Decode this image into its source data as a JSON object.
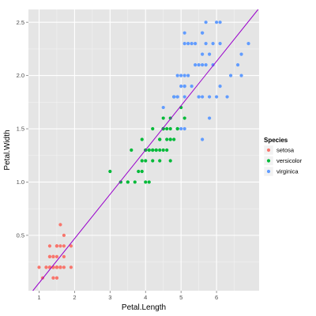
{
  "chart_data": {
    "type": "scatter",
    "title": "",
    "xlabel": "Petal.Length",
    "ylabel": "Petal.Width",
    "xlim": [
      0.7,
      7.2
    ],
    "ylim": [
      -0.02,
      2.62
    ],
    "x_ticks": [
      1,
      2,
      3,
      4,
      5,
      6
    ],
    "y_ticks": [
      0.5,
      1.0,
      1.5,
      2.0,
      2.5
    ],
    "y_tick_labels": [
      "0.5",
      "1.0",
      "1.5",
      "2.0",
      "2.5"
    ],
    "grid": true,
    "legend": {
      "title": "Species",
      "position": "right"
    },
    "series": [
      {
        "name": "setosa",
        "color": "#F8766D",
        "points": [
          [
            1.4,
            0.2
          ],
          [
            1.4,
            0.2
          ],
          [
            1.3,
            0.2
          ],
          [
            1.5,
            0.2
          ],
          [
            1.4,
            0.2
          ],
          [
            1.7,
            0.4
          ],
          [
            1.4,
            0.3
          ],
          [
            1.5,
            0.2
          ],
          [
            1.4,
            0.2
          ],
          [
            1.5,
            0.1
          ],
          [
            1.5,
            0.2
          ],
          [
            1.6,
            0.2
          ],
          [
            1.4,
            0.1
          ],
          [
            1.1,
            0.1
          ],
          [
            1.2,
            0.2
          ],
          [
            1.5,
            0.4
          ],
          [
            1.3,
            0.4
          ],
          [
            1.4,
            0.3
          ],
          [
            1.7,
            0.3
          ],
          [
            1.5,
            0.3
          ],
          [
            1.7,
            0.2
          ],
          [
            1.5,
            0.4
          ],
          [
            1.0,
            0.2
          ],
          [
            1.7,
            0.5
          ],
          [
            1.9,
            0.2
          ],
          [
            1.6,
            0.2
          ],
          [
            1.6,
            0.4
          ],
          [
            1.5,
            0.2
          ],
          [
            1.4,
            0.2
          ],
          [
            1.6,
            0.2
          ],
          [
            1.6,
            0.2
          ],
          [
            1.5,
            0.4
          ],
          [
            1.5,
            0.1
          ],
          [
            1.4,
            0.2
          ],
          [
            1.5,
            0.2
          ],
          [
            1.2,
            0.2
          ],
          [
            1.3,
            0.2
          ],
          [
            1.4,
            0.1
          ],
          [
            1.3,
            0.2
          ],
          [
            1.5,
            0.2
          ],
          [
            1.3,
            0.3
          ],
          [
            1.3,
            0.3
          ],
          [
            1.3,
            0.2
          ],
          [
            1.6,
            0.6
          ],
          [
            1.9,
            0.4
          ],
          [
            1.4,
            0.3
          ],
          [
            1.6,
            0.2
          ],
          [
            1.4,
            0.2
          ],
          [
            1.5,
            0.2
          ],
          [
            1.4,
            0.2
          ]
        ]
      },
      {
        "name": "versicolor",
        "color": "#00BA38",
        "points": [
          [
            4.7,
            1.4
          ],
          [
            4.5,
            1.5
          ],
          [
            4.9,
            1.5
          ],
          [
            4.0,
            1.3
          ],
          [
            4.6,
            1.5
          ],
          [
            4.5,
            1.3
          ],
          [
            4.7,
            1.6
          ],
          [
            3.3,
            1.0
          ],
          [
            4.6,
            1.3
          ],
          [
            3.9,
            1.4
          ],
          [
            3.5,
            1.0
          ],
          [
            4.2,
            1.5
          ],
          [
            4.0,
            1.0
          ],
          [
            4.7,
            1.4
          ],
          [
            3.6,
            1.3
          ],
          [
            4.4,
            1.4
          ],
          [
            4.5,
            1.5
          ],
          [
            4.1,
            1.0
          ],
          [
            4.5,
            1.5
          ],
          [
            3.9,
            1.1
          ],
          [
            4.8,
            1.8
          ],
          [
            4.0,
            1.3
          ],
          [
            4.9,
            1.5
          ],
          [
            4.7,
            1.2
          ],
          [
            4.3,
            1.3
          ],
          [
            4.4,
            1.4
          ],
          [
            4.8,
            1.4
          ],
          [
            5.0,
            1.7
          ],
          [
            4.5,
            1.5
          ],
          [
            3.5,
            1.0
          ],
          [
            3.8,
            1.1
          ],
          [
            3.7,
            1.0
          ],
          [
            3.9,
            1.2
          ],
          [
            5.1,
            1.6
          ],
          [
            4.5,
            1.5
          ],
          [
            4.5,
            1.6
          ],
          [
            4.7,
            1.5
          ],
          [
            4.4,
            1.3
          ],
          [
            4.1,
            1.3
          ],
          [
            4.0,
            1.3
          ],
          [
            4.4,
            1.2
          ],
          [
            4.6,
            1.4
          ],
          [
            4.0,
            1.2
          ],
          [
            3.3,
            1.0
          ],
          [
            4.2,
            1.3
          ],
          [
            4.2,
            1.2
          ],
          [
            4.2,
            1.3
          ],
          [
            4.3,
            1.3
          ],
          [
            3.0,
            1.1
          ],
          [
            4.1,
            1.3
          ]
        ]
      },
      {
        "name": "virginica",
        "color": "#619CFF",
        "points": [
          [
            6.0,
            2.5
          ],
          [
            5.1,
            1.9
          ],
          [
            5.9,
            2.1
          ],
          [
            5.6,
            1.8
          ],
          [
            5.8,
            2.2
          ],
          [
            6.6,
            2.1
          ],
          [
            4.5,
            1.7
          ],
          [
            6.3,
            1.8
          ],
          [
            5.8,
            1.8
          ],
          [
            6.1,
            2.5
          ],
          [
            5.1,
            2.0
          ],
          [
            5.3,
            1.9
          ],
          [
            5.5,
            2.1
          ],
          [
            5.0,
            2.0
          ],
          [
            5.1,
            2.4
          ],
          [
            5.3,
            2.3
          ],
          [
            5.5,
            1.8
          ],
          [
            6.7,
            2.2
          ],
          [
            6.9,
            2.3
          ],
          [
            5.0,
            1.5
          ],
          [
            5.7,
            2.3
          ],
          [
            4.9,
            2.0
          ],
          [
            6.7,
            2.0
          ],
          [
            4.9,
            1.8
          ],
          [
            5.7,
            2.1
          ],
          [
            6.0,
            1.8
          ],
          [
            4.8,
            1.8
          ],
          [
            4.9,
            1.8
          ],
          [
            5.6,
            2.1
          ],
          [
            5.8,
            1.6
          ],
          [
            6.1,
            1.9
          ],
          [
            6.4,
            2.0
          ],
          [
            5.6,
            2.2
          ],
          [
            5.1,
            1.5
          ],
          [
            5.6,
            1.4
          ],
          [
            6.1,
            2.3
          ],
          [
            5.6,
            2.4
          ],
          [
            5.5,
            1.8
          ],
          [
            4.8,
            1.8
          ],
          [
            5.4,
            2.1
          ],
          [
            5.6,
            2.4
          ],
          [
            5.1,
            2.3
          ],
          [
            5.1,
            1.9
          ],
          [
            5.9,
            2.3
          ],
          [
            5.7,
            2.5
          ],
          [
            5.2,
            2.3
          ],
          [
            5.0,
            1.9
          ],
          [
            5.2,
            2.0
          ],
          [
            5.4,
            2.3
          ],
          [
            5.1,
            1.8
          ]
        ]
      }
    ],
    "regression_line": {
      "color": "#9900CC",
      "intercept": -0.363,
      "slope": 0.416
    }
  }
}
